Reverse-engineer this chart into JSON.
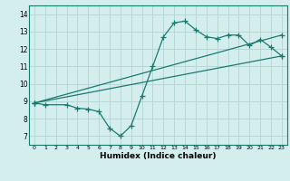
{
  "xlabel": "Humidex (Indice chaleur)",
  "bg_color": "#d4eeee",
  "line_color": "#1a7a6e",
  "grid_color": "#b8d8d8",
  "xlim": [
    -0.5,
    23.5
  ],
  "ylim": [
    6.5,
    14.5
  ],
  "xticks": [
    0,
    1,
    2,
    3,
    4,
    5,
    6,
    7,
    8,
    9,
    10,
    11,
    12,
    13,
    14,
    15,
    16,
    17,
    18,
    19,
    20,
    21,
    22,
    23
  ],
  "yticks": [
    7,
    8,
    9,
    10,
    11,
    12,
    13,
    14
  ],
  "line1_x": [
    0,
    1,
    3,
    4,
    5,
    6,
    7,
    8,
    9,
    10,
    11,
    12,
    13,
    14,
    15,
    16,
    17,
    18,
    19,
    20,
    21,
    22,
    23
  ],
  "line1_y": [
    8.9,
    8.8,
    8.8,
    8.6,
    8.55,
    8.4,
    7.45,
    7.0,
    7.6,
    9.3,
    11.0,
    12.7,
    13.5,
    13.6,
    13.1,
    12.7,
    12.6,
    12.8,
    12.8,
    12.2,
    12.55,
    12.1,
    11.6
  ],
  "line2_x": [
    0,
    23
  ],
  "line2_y": [
    8.9,
    12.8
  ],
  "line3_x": [
    0,
    23
  ],
  "line3_y": [
    8.9,
    11.6
  ],
  "marker_size": 4
}
